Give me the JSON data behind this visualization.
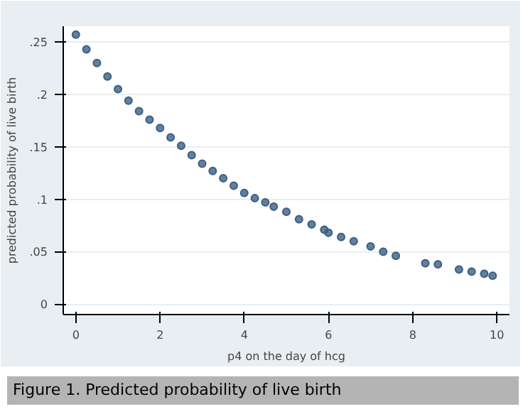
{
  "chart_data": {
    "type": "scatter",
    "xlabel": "p4 on the day of hcg",
    "ylabel": "predicted probability of live birth",
    "annotations": [
      "Figure 1. Predicted probability of live birth"
    ],
    "x": [
      0,
      0.25,
      0.5,
      0.75,
      1,
      1.25,
      1.5,
      1.75,
      2,
      2.25,
      2.5,
      2.75,
      3,
      3.25,
      3.5,
      3.75,
      4,
      4.25,
      4.5,
      4.7,
      5,
      5.3,
      5.6,
      5.9,
      6,
      6.3,
      6.6,
      7,
      7.3,
      7.6,
      8.3,
      8.6,
      9.1,
      9.4,
      9.7,
      9.9
    ],
    "series": [
      {
        "color": "#3b5f82",
        "values": [
          0.257,
          0.243,
          0.23,
          0.217,
          0.205,
          0.194,
          0.184,
          0.176,
          0.168,
          0.159,
          0.151,
          0.142,
          0.134,
          0.127,
          0.12,
          0.113,
          0.106,
          0.101,
          0.097,
          0.093,
          0.088,
          0.081,
          0.076,
          0.071,
          0.068,
          0.064,
          0.06,
          0.055,
          0.05,
          0.046,
          0.039,
          0.038,
          0.033,
          0.031,
          0.029,
          0.027
        ]
      }
    ],
    "xlim": [
      -0.3,
      10.3
    ],
    "ylim": [
      -0.01,
      0.265
    ],
    "xticks": [
      0,
      2,
      4,
      6,
      8,
      10
    ],
    "yticks": [
      0,
      {
        "value": 0.05,
        "label": ".05"
      },
      {
        "value": 0.1,
        "label": ".1"
      },
      {
        "value": 0.15,
        "label": ".15"
      },
      {
        "value": 0.2,
        "label": ".2"
      },
      {
        "value": 0.25,
        "label": ".25"
      }
    ],
    "grid": "y",
    "marker": "circle"
  }
}
